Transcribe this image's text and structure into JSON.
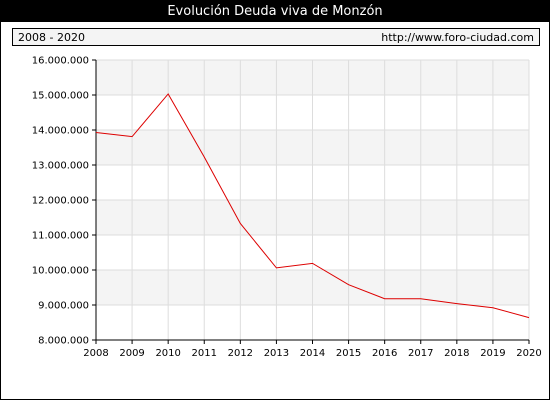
{
  "title": "Evolución Deuda viva de Monzón",
  "period_label": "2008 - 2020",
  "source_url": "http://www.foro-ciudad.com",
  "colors": {
    "line": "#dd0000",
    "title_bg": "#000000",
    "band": "#f4f4f4",
    "grid": "#dddddd"
  },
  "chart_data": {
    "type": "line",
    "title": "Evolución Deuda viva de Monzón",
    "xlabel": "",
    "ylabel": "",
    "ylim": [
      8000000,
      16000000
    ],
    "y_ticks": [
      "8.000.000",
      "9.000.000",
      "10.000.000",
      "11.000.000",
      "12.000.000",
      "13.000.000",
      "14.000.000",
      "15.000.000",
      "16.000.000"
    ],
    "x_ticks": [
      "2008",
      "2009",
      "2010",
      "2011",
      "2012",
      "2013",
      "2014",
      "2015",
      "2016",
      "2017",
      "2018",
      "2019",
      "2020"
    ],
    "grid": true,
    "series": [
      {
        "x": [
          2008,
          2009,
          2010,
          2011,
          2012,
          2013,
          2014,
          2015,
          2016,
          2017,
          2018,
          2019,
          2020
        ],
        "values": [
          13930000,
          13810000,
          15030000,
          13230000,
          11330000,
          10060000,
          10190000,
          9580000,
          9180000,
          9180000,
          9040000,
          8920000,
          8640000
        ]
      }
    ]
  }
}
